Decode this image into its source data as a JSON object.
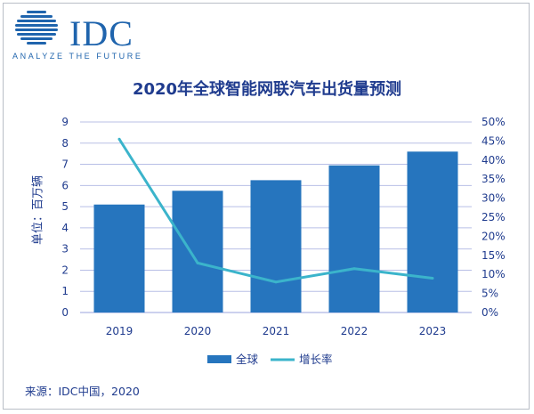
{
  "header": {
    "logo_text": "IDC",
    "tagline": "ANALYZE THE FUTURE"
  },
  "footer": {
    "source": "来源：IDC中国，2020"
  },
  "colors": {
    "bar": "#2675be",
    "line": "#3bb4cb",
    "text": "#1f3b8e",
    "grid": "#b8bfe6",
    "logo": "#1f64ad"
  },
  "chart_data": {
    "type": "bar",
    "title": "2020年全球智能网联汽车出货量预测",
    "ylabel": "单位：百万辆",
    "ylabel_right": "",
    "categories": [
      "2019",
      "2020",
      "2021",
      "2022",
      "2023"
    ],
    "ylim": [
      0,
      9
    ],
    "yticks": [
      "0",
      "1",
      "2",
      "3",
      "4",
      "5",
      "6",
      "7",
      "8",
      "9"
    ],
    "y2lim": [
      0,
      50
    ],
    "y2ticks": [
      "0%",
      "5%",
      "10%",
      "15%",
      "20%",
      "25%",
      "30%",
      "35%",
      "40%",
      "45%",
      "50%"
    ],
    "grid": true,
    "legend_position": "bottom",
    "series": [
      {
        "name": "全球",
        "type": "bar",
        "axis": "left",
        "values": [
          5.1,
          5.75,
          6.25,
          6.95,
          7.6
        ]
      },
      {
        "name": "增长率",
        "type": "line",
        "axis": "right",
        "values": [
          45.5,
          13.0,
          8.0,
          11.5,
          9.0
        ]
      }
    ]
  }
}
